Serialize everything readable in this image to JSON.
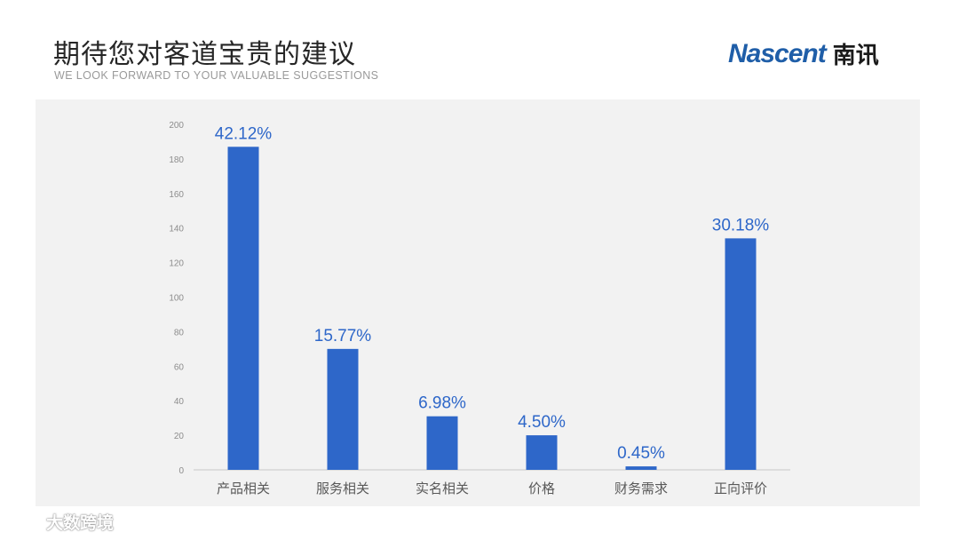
{
  "header": {
    "title": "期待您对客道宝贵的建议",
    "subtitle": "WE LOOK FORWARD TO YOUR VALUABLE SUGGESTIONS"
  },
  "brand": {
    "name_en": "Nascent",
    "name_cn": "南讯",
    "color": "#1f5ea8"
  },
  "watermark": {
    "text": "大数跨境",
    "icon": "cloud-logo-icon"
  },
  "chart_data": {
    "type": "bar",
    "categories": [
      "产品相关",
      "服务相关",
      "实名相关",
      "价格",
      "财务需求",
      "正向评价"
    ],
    "values": [
      187,
      70,
      31,
      20,
      2,
      134
    ],
    "data_labels": [
      "42.12%",
      "15.77%",
      "6.98%",
      "4.50%",
      "0.45%",
      "30.18%"
    ],
    "ylim": [
      0,
      200
    ],
    "yticks": [
      0,
      20,
      40,
      60,
      80,
      100,
      120,
      140,
      160,
      180,
      200
    ],
    "bar_color": "#2e67c9",
    "label_color": "#2e67c9",
    "grid": false
  }
}
